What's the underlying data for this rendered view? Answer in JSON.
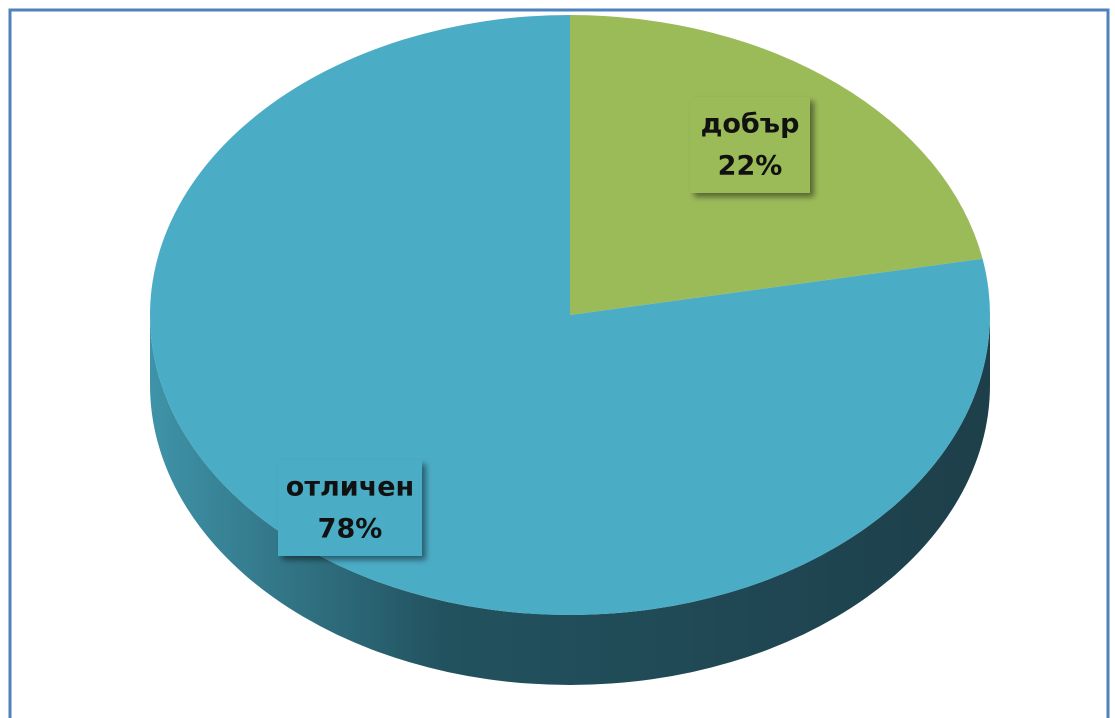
{
  "chart_data": {
    "type": "pie",
    "categories": [
      "добър",
      "отличен"
    ],
    "values": [
      22,
      78
    ],
    "value_labels": [
      "22%",
      "78%"
    ],
    "colors": [
      "#9bbb59",
      "#4bacc6"
    ]
  }
}
